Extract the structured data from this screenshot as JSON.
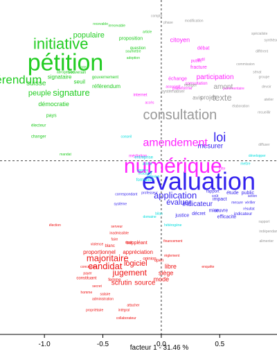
{
  "chart_data": {
    "type": "scatter",
    "subtype": "word-cloud factor map",
    "xlabel": "facteur 1 - 31.46 %",
    "x_ticks": [
      -1.0,
      -0.5,
      0.0,
      0.5
    ],
    "x_tick_labels": [
      "-1.0",
      "-0.5",
      "0.0",
      "0.5"
    ],
    "xlim": [
      -1.38,
      0.99
    ],
    "ylim": [
      -1.08,
      1.0
    ],
    "reference_lines": {
      "x": 0,
      "y": 0
    },
    "series": [
      {
        "color": "#22cc22",
        "points": [
          {
            "label": "pétition",
            "x": -0.82,
            "y": 0.6,
            "size": 34
          },
          {
            "label": "initiative",
            "x": -0.86,
            "y": 0.72,
            "size": 22
          },
          {
            "label": "référendum",
            "x": -1.28,
            "y": 0.5,
            "size": 17
          },
          {
            "label": "signature",
            "x": -0.77,
            "y": 0.42,
            "size": 13
          },
          {
            "label": "populaire",
            "x": -0.62,
            "y": 0.78,
            "size": 11
          },
          {
            "label": "peuple",
            "x": -1.04,
            "y": 0.42,
            "size": 11
          },
          {
            "label": "suisse",
            "x": -1.07,
            "y": 0.48,
            "size": 10
          },
          {
            "label": "démocratie",
            "x": -0.92,
            "y": 0.35,
            "size": 9
          },
          {
            "label": "référendum",
            "x": -0.47,
            "y": 0.46,
            "size": 8
          },
          {
            "label": "proposition",
            "x": -0.26,
            "y": 0.76,
            "size": 7
          },
          {
            "label": "gouvernement",
            "x": -0.48,
            "y": 0.52,
            "size": 6
          },
          {
            "label": "signataire",
            "x": -0.87,
            "y": 0.52,
            "size": 8
          },
          {
            "label": "seuil",
            "x": -0.7,
            "y": 0.49,
            "size": 8
          },
          {
            "label": "question",
            "x": -0.2,
            "y": 0.7,
            "size": 6
          },
          {
            "label": "changer",
            "x": -1.05,
            "y": 0.15,
            "size": 6
          },
          {
            "label": "électeur",
            "x": -1.05,
            "y": 0.22,
            "size": 6
          },
          {
            "label": "pays",
            "x": -0.94,
            "y": 0.28,
            "size": 7
          },
          {
            "label": "souverain",
            "x": -0.72,
            "y": 0.55,
            "size": 6
          },
          {
            "label": "mandat",
            "x": -0.82,
            "y": 0.04,
            "size": 5
          },
          {
            "label": "abrogatoire",
            "x": -0.82,
            "y": 0.55,
            "size": 5
          },
          {
            "label": "vote",
            "x": -0.67,
            "y": 0.58,
            "size": 5
          },
          {
            "label": "recevable",
            "x": -0.52,
            "y": 0.85,
            "size": 5
          },
          {
            "label": "irrecevable",
            "x": -0.38,
            "y": 0.84,
            "size": 5
          },
          {
            "label": "article",
            "x": -0.12,
            "y": 0.8,
            "size": 5
          },
          {
            "label": "soumettre",
            "x": -0.24,
            "y": 0.68,
            "size": 5
          },
          {
            "label": "adoption",
            "x": -0.24,
            "y": 0.64,
            "size": 5
          }
        ]
      },
      {
        "color": "#ee1111",
        "points": [
          {
            "label": "candidat",
            "x": -0.48,
            "y": -0.66,
            "size": 13
          },
          {
            "label": "majoritaire",
            "x": -0.46,
            "y": -0.61,
            "size": 13
          },
          {
            "label": "jugement",
            "x": -0.27,
            "y": -0.7,
            "size": 12
          },
          {
            "label": "logiciel",
            "x": -0.22,
            "y": -0.64,
            "size": 11
          },
          {
            "label": "scrutin",
            "x": -0.34,
            "y": -0.76,
            "size": 10
          },
          {
            "label": "source",
            "x": -0.14,
            "y": -0.76,
            "size": 10
          },
          {
            "label": "libre",
            "x": 0.08,
            "y": -0.66,
            "size": 9
          },
          {
            "label": "siège",
            "x": 0.04,
            "y": -0.7,
            "size": 9
          },
          {
            "label": "mode",
            "x": 0.0,
            "y": -0.74,
            "size": 9
          },
          {
            "label": "proportionnel",
            "x": -0.53,
            "y": -0.57,
            "size": 8
          },
          {
            "label": "appréciation",
            "x": -0.2,
            "y": -0.57,
            "size": 8
          },
          {
            "label": "suppléant",
            "x": -0.21,
            "y": -0.51,
            "size": 7
          },
          {
            "label": "constituant",
            "x": -0.64,
            "y": -0.73,
            "size": 6
          },
          {
            "label": "blanc",
            "x": -0.44,
            "y": -0.53,
            "size": 6
          },
          {
            "label": "femme",
            "x": -0.4,
            "y": -0.74,
            "size": 6
          },
          {
            "label": "administration",
            "x": -0.5,
            "y": -0.86,
            "size": 5
          },
          {
            "label": "élection",
            "x": -0.91,
            "y": -0.4,
            "size": 5
          },
          {
            "label": "conception",
            "x": -0.62,
            "y": -0.66,
            "size": 5
          },
          {
            "label": "violence",
            "x": -0.55,
            "y": -0.52,
            "size": 5
          },
          {
            "label": "opinion",
            "x": -0.1,
            "y": -0.61,
            "size": 6
          },
          {
            "label": "open",
            "x": -0.02,
            "y": -0.62,
            "size": 6
          },
          {
            "label": "homme",
            "x": -0.64,
            "y": -0.82,
            "size": 5
          },
          {
            "label": "secret",
            "x": -0.55,
            "y": -0.78,
            "size": 5
          },
          {
            "label": "payer",
            "x": -0.63,
            "y": -0.7,
            "size": 5
          },
          {
            "label": "salaire",
            "x": -0.48,
            "y": -0.83,
            "size": 5
          },
          {
            "label": "propriétaire",
            "x": -0.57,
            "y": -0.93,
            "size": 5
          },
          {
            "label": "attacher",
            "x": -0.24,
            "y": -0.9,
            "size": 5
          },
          {
            "label": "intégral",
            "x": -0.32,
            "y": -0.93,
            "size": 5
          },
          {
            "label": "collaborateur",
            "x": -0.3,
            "y": -0.98,
            "size": 5
          },
          {
            "label": "serveur",
            "x": -0.38,
            "y": -0.41,
            "size": 5
          },
          {
            "label": "inadmissible",
            "x": -0.36,
            "y": -0.45,
            "size": 5
          },
          {
            "label": "faire",
            "x": -0.4,
            "y": -0.49,
            "size": 5
          },
          {
            "label": "droit",
            "x": -0.28,
            "y": -0.51,
            "size": 5
          },
          {
            "label": "règlement",
            "x": 0.09,
            "y": -0.59,
            "size": 5
          },
          {
            "label": "financement",
            "x": 0.1,
            "y": -0.5,
            "size": 5
          },
          {
            "label": "enquête",
            "x": 0.4,
            "y": -0.66,
            "size": 5
          }
        ]
      },
      {
        "color": "#3322ee",
        "points": [
          {
            "label": "évaluation",
            "x": 0.32,
            "y": -0.14,
            "size": 36
          },
          {
            "label": "loi",
            "x": 0.5,
            "y": 0.14,
            "size": 18
          },
          {
            "label": "application",
            "x": 0.12,
            "y": -0.22,
            "size": 13
          },
          {
            "label": "évaluer",
            "x": 0.15,
            "y": -0.26,
            "size": 11
          },
          {
            "label": "indicateur",
            "x": 0.31,
            "y": -0.27,
            "size": 10
          },
          {
            "label": "mesurer",
            "x": 0.42,
            "y": 0.09,
            "size": 10
          },
          {
            "label": "efficacité",
            "x": 0.56,
            "y": -0.35,
            "size": 7
          },
          {
            "label": "étude",
            "x": 0.61,
            "y": -0.2,
            "size": 7
          },
          {
            "label": "public",
            "x": 0.74,
            "y": -0.2,
            "size": 7
          },
          {
            "label": "décret",
            "x": 0.32,
            "y": -0.33,
            "size": 7
          },
          {
            "label": "justice",
            "x": 0.18,
            "y": -0.34,
            "size": 7
          },
          {
            "label": "œuvre",
            "x": 0.51,
            "y": -0.31,
            "size": 7
          },
          {
            "label": "mise",
            "x": 0.45,
            "y": -0.31,
            "size": 7
          },
          {
            "label": "impact",
            "x": 0.5,
            "y": -0.24,
            "size": 7
          },
          {
            "label": "système",
            "x": -0.35,
            "y": -0.27,
            "size": 5
          },
          {
            "label": "correspondant",
            "x": -0.3,
            "y": -0.21,
            "size": 5
          },
          {
            "label": "professeur",
            "x": -0.1,
            "y": -0.2,
            "size": 5
          },
          {
            "label": "indicateur",
            "x": 0.7,
            "y": -0.33,
            "size": 6
          },
          {
            "label": "rapport",
            "x": 0.44,
            "y": -0.19,
            "size": 6
          },
          {
            "label": "coût",
            "x": 0.46,
            "y": -0.22,
            "size": 5
          },
          {
            "label": "vérifier",
            "x": 0.76,
            "y": -0.26,
            "size": 5
          },
          {
            "label": "mesure",
            "x": 0.65,
            "y": -0.26,
            "size": 5
          },
          {
            "label": "action",
            "x": 0.78,
            "y": -0.22,
            "size": 5
          },
          {
            "label": "résultat",
            "x": 0.75,
            "y": -0.3,
            "size": 5
          }
        ]
      },
      {
        "color": "#ff22ff",
        "points": [
          {
            "label": "numérique",
            "x": 0.1,
            "y": -0.04,
            "size": 30
          },
          {
            "label": "amendement",
            "x": 0.12,
            "y": 0.11,
            "size": 16
          },
          {
            "label": "participation",
            "x": 0.46,
            "y": 0.52,
            "size": 10
          },
          {
            "label": "citoyen",
            "x": 0.16,
            "y": 0.75,
            "size": 9
          },
          {
            "label": "fracture",
            "x": 0.32,
            "y": 0.58,
            "size": 7
          },
          {
            "label": "échange",
            "x": 0.14,
            "y": 0.51,
            "size": 7
          },
          {
            "label": "plateforme",
            "x": 0.18,
            "y": 0.45,
            "size": 6
          },
          {
            "label": "médiation",
            "x": -0.2,
            "y": 0.03,
            "size": 6
          },
          {
            "label": "parlementaire",
            "x": 0.62,
            "y": 0.45,
            "size": 5
          },
          {
            "label": "débat",
            "x": 0.36,
            "y": 0.7,
            "size": 7
          },
          {
            "label": "public",
            "x": 0.3,
            "y": 0.62,
            "size": 6
          },
          {
            "label": "consultation",
            "x": 0.3,
            "y": 0.48,
            "size": 6
          },
          {
            "label": "internet",
            "x": -0.18,
            "y": 0.41,
            "size": 6
          },
          {
            "label": "outil",
            "x": 0.34,
            "y": 0.63,
            "size": 6
          },
          {
            "label": "associatif",
            "x": 0.1,
            "y": 0.46,
            "size": 5
          },
          {
            "label": "accès",
            "x": -0.1,
            "y": 0.36,
            "size": 5
          },
          {
            "label": "lutte",
            "x": 0.52,
            "y": -0.05,
            "size": 5
          }
        ]
      },
      {
        "color": "#00dddd",
        "points": [
          {
            "label": "entreprise",
            "x": -0.15,
            "y": 0.02,
            "size": 6
          },
          {
            "label": "formation",
            "x": -0.14,
            "y": -0.12,
            "size": 6
          },
          {
            "label": "agence",
            "x": -0.16,
            "y": -0.06,
            "size": 5
          },
          {
            "label": "inclusion",
            "x": -0.14,
            "y": -0.08,
            "size": 5
          },
          {
            "label": "acteur",
            "x": -0.12,
            "y": -0.02,
            "size": 5
          },
          {
            "label": "réflexion",
            "x": -0.07,
            "y": -0.1,
            "size": 5
          },
          {
            "label": "bilan",
            "x": -0.02,
            "y": -0.33,
            "size": 5
          },
          {
            "label": "conseil",
            "x": -0.3,
            "y": 0.15,
            "size": 5
          },
          {
            "label": "hétérogène",
            "x": 0.1,
            "y": -0.4,
            "size": 5
          },
          {
            "label": "domaine",
            "x": -0.1,
            "y": -0.35,
            "size": 5
          },
          {
            "label": "mettre",
            "x": 0.72,
            "y": -0.02,
            "size": 5
          },
          {
            "label": "développer",
            "x": 0.82,
            "y": 0.03,
            "size": 5
          }
        ]
      },
      {
        "color": "#999999",
        "points": [
          {
            "label": "consultation",
            "x": 0.16,
            "y": 0.28,
            "size": 20
          },
          {
            "label": "texte",
            "x": 0.52,
            "y": 0.39,
            "size": 13
          },
          {
            "label": "projet",
            "x": 0.4,
            "y": 0.39,
            "size": 9
          },
          {
            "label": "amont",
            "x": 0.53,
            "y": 0.46,
            "size": 10
          },
          {
            "label": "avis",
            "x": 0.31,
            "y": 0.39,
            "size": 8
          },
          {
            "label": "rédiger",
            "x": 0.25,
            "y": 0.47,
            "size": 6
          },
          {
            "label": "systématiser",
            "x": 0.1,
            "y": 0.43,
            "size": 6
          },
          {
            "label": "modification",
            "x": 0.28,
            "y": 0.87,
            "size": 5
          },
          {
            "label": "phase",
            "x": 0.06,
            "y": 0.86,
            "size": 5
          },
          {
            "label": "compte",
            "x": -0.04,
            "y": 0.9,
            "size": 5
          },
          {
            "label": "spécialiste",
            "x": 0.84,
            "y": 0.79,
            "size": 5
          },
          {
            "label": "sénat",
            "x": 0.82,
            "y": 0.55,
            "size": 5
          },
          {
            "label": "groupe",
            "x": 0.88,
            "y": 0.52,
            "size": 5
          },
          {
            "label": "devoir",
            "x": 0.9,
            "y": 0.46,
            "size": 5
          },
          {
            "label": "différent",
            "x": 0.86,
            "y": 0.68,
            "size": 5
          },
          {
            "label": "commission",
            "x": 0.72,
            "y": 0.6,
            "size": 5
          },
          {
            "label": "synthèse",
            "x": 0.94,
            "y": 0.75,
            "size": 5
          },
          {
            "label": "atelier",
            "x": 0.92,
            "y": 0.38,
            "size": 5
          },
          {
            "label": "recueillir",
            "x": 0.88,
            "y": 0.3,
            "size": 5
          },
          {
            "label": "élaboration",
            "x": 0.68,
            "y": 0.34,
            "size": 5
          },
          {
            "label": "diffuser",
            "x": 0.88,
            "y": 0.1,
            "size": 5
          },
          {
            "label": "indépendant",
            "x": 0.92,
            "y": -0.44,
            "size": 5
          },
          {
            "label": "alimenter",
            "x": 0.9,
            "y": -0.5,
            "size": 5
          },
          {
            "label": "rapport",
            "x": 0.88,
            "y": -0.38,
            "size": 5
          }
        ]
      }
    ]
  }
}
